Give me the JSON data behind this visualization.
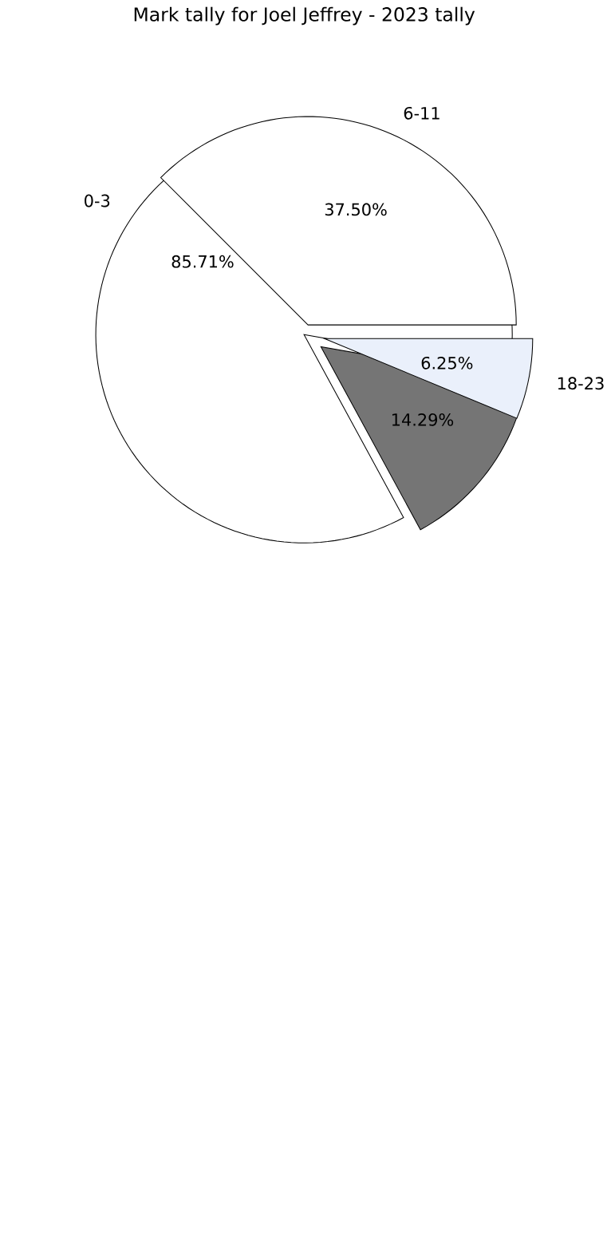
{
  "chart_data": [
    {
      "type": "pie",
      "title": "Mark tally for Joel Jeffrey - 2023 tally",
      "categories": [
        "0-3",
        null
      ],
      "values": [
        85.71,
        14.29
      ],
      "colors": [
        "#ffffff",
        "#757575"
      ],
      "value_labels": [
        "85.71%",
        "14.29%"
      ]
    },
    {
      "type": "pie",
      "categories": [
        "6-11",
        "18-23"
      ],
      "values": [
        37.5,
        6.25
      ],
      "colors": [
        "#ffffff",
        "#eaf0fb"
      ],
      "value_labels": [
        "37.50%",
        "6.25%"
      ]
    }
  ]
}
